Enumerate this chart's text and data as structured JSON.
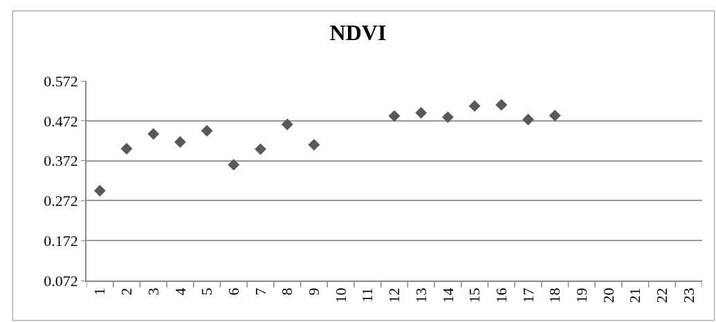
{
  "chart_data": {
    "type": "scatter",
    "title": "NDVI",
    "categories": [
      "1",
      "2",
      "3",
      "4",
      "5",
      "6",
      "7",
      "8",
      "9",
      "10",
      "11",
      "12",
      "13",
      "14",
      "15",
      "16",
      "17",
      "18",
      "19",
      "20",
      "21",
      "22",
      "23"
    ],
    "series": [
      {
        "color": "#595959",
        "values": [
          0.297,
          0.402,
          0.439,
          0.419,
          0.447,
          0.362,
          0.401,
          0.463,
          0.412,
          null,
          null,
          0.484,
          0.492,
          0.481,
          0.509,
          0.512,
          0.475,
          0.485,
          null,
          null,
          null,
          null,
          null
        ]
      }
    ],
    "ylim": [
      0.072,
      0.572
    ],
    "yticks": [
      0.072,
      0.172,
      0.272,
      0.372,
      0.472,
      0.572
    ],
    "grid": "y",
    "marker": "diamond"
  }
}
